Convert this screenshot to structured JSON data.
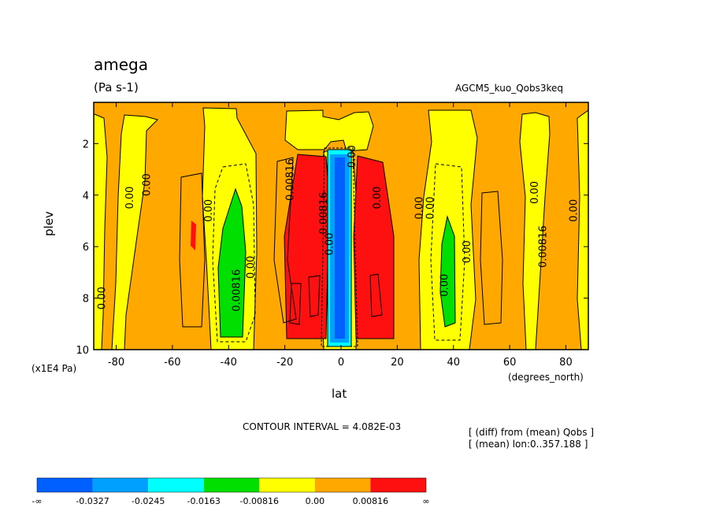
{
  "title": "amega",
  "units": "(Pa s-1)",
  "experiment": "AGCM5_kuo_Qobs3keq",
  "contour_interval": "CONTOUR INTERVAL = 4.082E-03",
  "notes": [
    "[ (diff) from (mean) Qobs ]",
    "[ (mean) lon:0..357.188 ]"
  ],
  "colors": {
    "c_m4": "#0060ff",
    "c_m3": "#00a0ff",
    "c_m2": "#00ffff",
    "c_m1": "#00e000",
    "c_0": "#ffff00",
    "c_p1": "#ffa800",
    "c_p2": "#ff1010"
  },
  "chart_data": {
    "type": "contour",
    "xlabel": "lat",
    "ylabel": "plev",
    "x_unit": "(degrees_north)",
    "y_unit": "(x1E4 Pa)",
    "xlim": [
      -88,
      88
    ],
    "ylim": [
      10,
      0.4
    ],
    "x_ticks": [
      -80,
      -60,
      -40,
      -20,
      0,
      20,
      40,
      60,
      80
    ],
    "x_tick_labels": [
      "-80",
      "-60",
      "-40",
      "-20",
      "0",
      "20",
      "40",
      "60",
      "80"
    ],
    "y_ticks": [
      2,
      4,
      6,
      8,
      10
    ],
    "y_tick_labels": [
      "2",
      "4",
      "6",
      "8",
      "10"
    ],
    "contour_labels": [
      "0.00",
      "0.00",
      "0.00",
      "0.00",
      "0.00816",
      "0.00816",
      "0.00816",
      "0.00",
      "0.00",
      "0.00",
      "0.00",
      "0.00",
      "0.00",
      "0.00",
      "0.00816",
      "0.00",
      "0.00",
      "0.00"
    ],
    "colorbar": {
      "labels": [
        "-∞",
        "-0.0327",
        "-0.0245",
        "-0.0163",
        "-0.00816",
        "0.00",
        "0.00816",
        "∞"
      ],
      "colors": [
        "#0060ff",
        "#00a0ff",
        "#00ffff",
        "#00e000",
        "#ffff00",
        "#ffa800",
        "#ff1010"
      ]
    }
  }
}
